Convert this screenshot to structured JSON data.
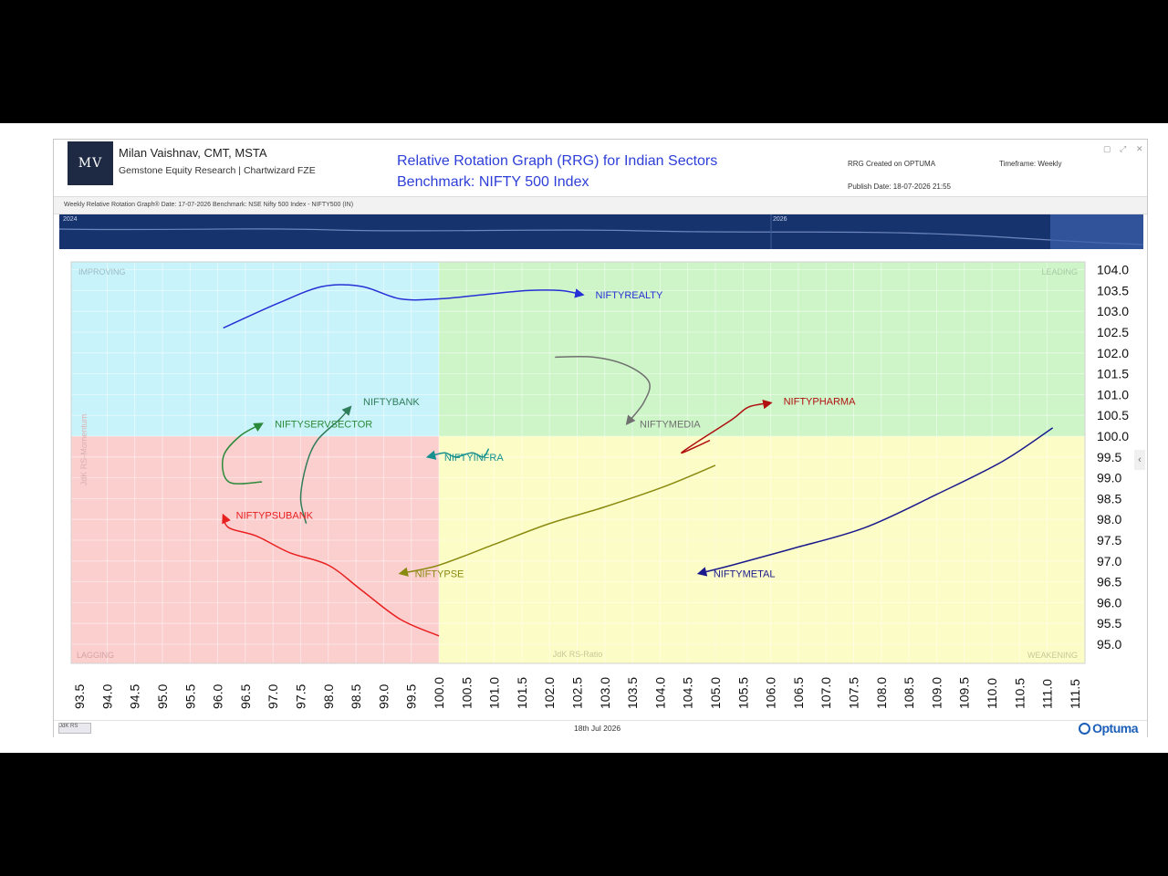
{
  "header": {
    "logo_text": "MV",
    "author": "Milan Vaishnav, CMT, MSTA",
    "company": "Gemstone Equity Research | Chartwizard FZE",
    "title_line1": "Relative Rotation Graph (RRG) for Indian Sectors",
    "title_line2": "Benchmark: NIFTY 500 Index",
    "created_on": "RRG Created on OPTUMA",
    "publish_date": "Publish Date: 18-07-2026 21:55",
    "timeframe": "Timeframe: Weekly"
  },
  "window_buttons": [
    "▢",
    "⤢",
    "✕"
  ],
  "subheader": "Weekly Relative Rotation Graph®   Date: 17-07-2026  Benchmark: NSE Nifty 500 Index - NIFTY500 (IN)",
  "navigator": {
    "labels": [
      "2024",
      "2026"
    ]
  },
  "footer": {
    "date": "18th Jul 2026",
    "brand": "Optuma",
    "mini_label": "JdK RS"
  },
  "colors": {
    "improving": "#c9f3fb",
    "leading": "#cdf5c8",
    "lagging": "#fccfcf",
    "weakening": "#fcfcc6"
  },
  "chart_data": {
    "type": "scatter",
    "xlim": [
      93.5,
      111.5
    ],
    "ylim": [
      95.0,
      104.0
    ],
    "x_ticks": [
      "93.5",
      "94.0",
      "94.5",
      "95.0",
      "95.5",
      "96.0",
      "96.5",
      "97.0",
      "97.5",
      "98.0",
      "98.5",
      "99.0",
      "99.5",
      "100.0",
      "100.5",
      "101.0",
      "101.5",
      "102.0",
      "102.5",
      "103.0",
      "103.5",
      "104.0",
      "104.5",
      "105.0",
      "105.5",
      "106.0",
      "106.5",
      "107.0",
      "107.5",
      "108.0",
      "108.5",
      "109.0",
      "109.5",
      "110.0",
      "110.5",
      "111.0",
      "111.5"
    ],
    "y_ticks": [
      "104.0",
      "103.5",
      "103.0",
      "102.5",
      "102.0",
      "101.5",
      "101.0",
      "100.5",
      "100.0",
      "99.5",
      "99.0",
      "98.5",
      "98.0",
      "97.5",
      "97.0",
      "96.5",
      "96.0",
      "95.5",
      "95.0"
    ],
    "xlabel": "JdK RS-Ratio",
    "ylabel": "JdK RS-Momentum",
    "grid": true,
    "quadrants": [
      "IMPROVING",
      "LEADING",
      "LAGGING",
      "WEAKENING"
    ],
    "series": [
      {
        "name": "NIFTYREALTY",
        "color": "#2630d6",
        "x": [
          96.1,
          97.1,
          97.9,
          98.6,
          99.3,
          100.0,
          100.8,
          101.6,
          102.2,
          102.6
        ],
        "y": [
          102.6,
          103.2,
          103.6,
          103.6,
          103.3,
          103.3,
          103.4,
          103.5,
          103.5,
          103.4
        ]
      },
      {
        "name": "NIFTYMEDIA",
        "color": "#707070",
        "x": [
          102.1,
          102.8,
          103.4,
          103.8,
          103.7,
          103.4
        ],
        "y": [
          101.9,
          101.9,
          101.7,
          101.3,
          100.8,
          100.3
        ]
      },
      {
        "name": "NIFTYPHARMA",
        "color": "#b01010",
        "x": [
          104.9,
          104.4,
          104.6,
          105.3,
          105.6,
          106.0
        ],
        "y": [
          99.9,
          99.6,
          99.8,
          100.4,
          100.7,
          100.8
        ]
      },
      {
        "name": "NIFTYBANK",
        "color": "#2f7d5a",
        "x": [
          97.6,
          97.5,
          97.6,
          97.8,
          98.2,
          98.4
        ],
        "y": [
          97.9,
          98.5,
          99.3,
          99.9,
          100.4,
          100.7
        ]
      },
      {
        "name": "NIFTYSERVSECTOR",
        "color": "#2b8a3a",
        "x": [
          96.8,
          96.2,
          96.1,
          96.4,
          96.8
        ],
        "y": [
          98.9,
          98.9,
          99.5,
          100.0,
          100.3
        ]
      },
      {
        "name": "NIFTYINFRA",
        "color": "#15908f",
        "x": [
          100.9,
          100.8,
          100.6,
          100.3,
          100.1,
          99.8
        ],
        "y": [
          99.7,
          99.5,
          99.6,
          99.5,
          99.6,
          99.5
        ]
      },
      {
        "name": "NIFTYPSUBANK",
        "color": "#e82020",
        "x": [
          100.0,
          99.3,
          98.6,
          98.0,
          97.3,
          96.7,
          96.2,
          96.1
        ],
        "y": [
          95.2,
          95.6,
          96.3,
          96.9,
          97.2,
          97.6,
          97.8,
          98.1
        ]
      },
      {
        "name": "NIFTYPSE",
        "color": "#8a8a10",
        "x": [
          105.0,
          104.1,
          103.0,
          102.0,
          101.0,
          100.0,
          99.3
        ],
        "y": [
          99.3,
          98.8,
          98.3,
          97.9,
          97.4,
          96.9,
          96.7
        ]
      },
      {
        "name": "NIFTYMETAL",
        "color": "#1a1a8c",
        "x": [
          111.1,
          110.2,
          109.0,
          107.7,
          106.4,
          105.3,
          104.7
        ],
        "y": [
          100.2,
          99.4,
          98.6,
          97.8,
          97.3,
          96.9,
          96.7
        ]
      }
    ]
  }
}
